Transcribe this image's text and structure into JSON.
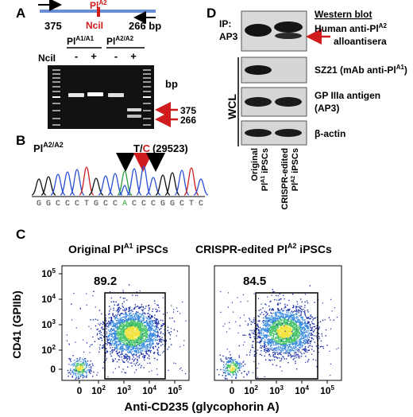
{
  "panels": {
    "A": {
      "letter": "A",
      "allele_label": "Pl",
      "allele_sup": "A2",
      "site_label": "NciI",
      "frag_375": "375",
      "frag_266": "266 bp",
      "geno1_main": "Pl",
      "geno1_sup": "A1/A1",
      "geno2_main": "Pl",
      "geno2_sup": "A2/A2",
      "ncii_row_label": "NciI",
      "lane_signs": [
        "-",
        "+",
        "-",
        "+"
      ],
      "bp_unit": "bp",
      "band_375": "375",
      "band_266": "266",
      "red_color": "#d01c1c"
    },
    "B": {
      "letter": "B",
      "geno_main": "Pl",
      "geno_sup": "A2/A2",
      "snp_t": "T/",
      "snp_c": "C",
      "snp_pos": "(29523)",
      "sequence": [
        "G",
        "G",
        "C",
        "C",
        "C",
        "T",
        "G",
        "C",
        "C",
        "A",
        "C",
        "C",
        "C",
        "G",
        "G",
        "C",
        "T",
        "C"
      ],
      "arrow_blue": "#5aaee8"
    },
    "C": {
      "letter": "C",
      "plot1_title_pre": "Original Pl",
      "plot1_title_sup": "A1",
      "plot1_title_post": " iPSCs",
      "plot2_title_pre": "CRISPR-edited Pl",
      "plot2_title_sup": "A2",
      "plot2_title_post": " iPSCs",
      "plot1_gate_pct": "89.2",
      "plot2_gate_pct": "84.5",
      "y_label": "CD41 (GPIIb)",
      "x_label": "Anti-CD235 (glycophorin A)",
      "y_tick_base": [
        "0",
        "10",
        "10",
        "10",
        "10"
      ],
      "y_tick_exp": [
        "",
        "2",
        "3",
        "4",
        "5"
      ],
      "x_tick_base": [
        "0",
        "10",
        "10",
        "10",
        "10"
      ],
      "x_tick_exp": [
        "",
        "2",
        "3",
        "4",
        "5"
      ]
    },
    "D": {
      "letter": "D",
      "ip_label_1": "IP:",
      "ip_label_2": "AP3",
      "wb_title": "Western blot",
      "row1_line1": "Human anti-Pl",
      "row1_sup": "A2",
      "row1_line2": "alloantisera",
      "row2_pre": "SZ21 (mAb anti-Pl",
      "row2_sup": "A1",
      "row2_post": ")",
      "row3_line1": "GP IIIa antigen",
      "row3_line2": "(AP3)",
      "row4": "β-actin",
      "wcl_label": "WCL",
      "lane1_line1": "Original",
      "lane1_line2_pre": "Pl",
      "lane1_line2_sup": "A1",
      "lane1_line2_post": " iPSCs",
      "lane2_line1": "CRISPR-edited",
      "lane2_line2_pre": "Pl",
      "lane2_line2_sup": "A2",
      "lane2_line2_post": " iPSCs"
    }
  }
}
